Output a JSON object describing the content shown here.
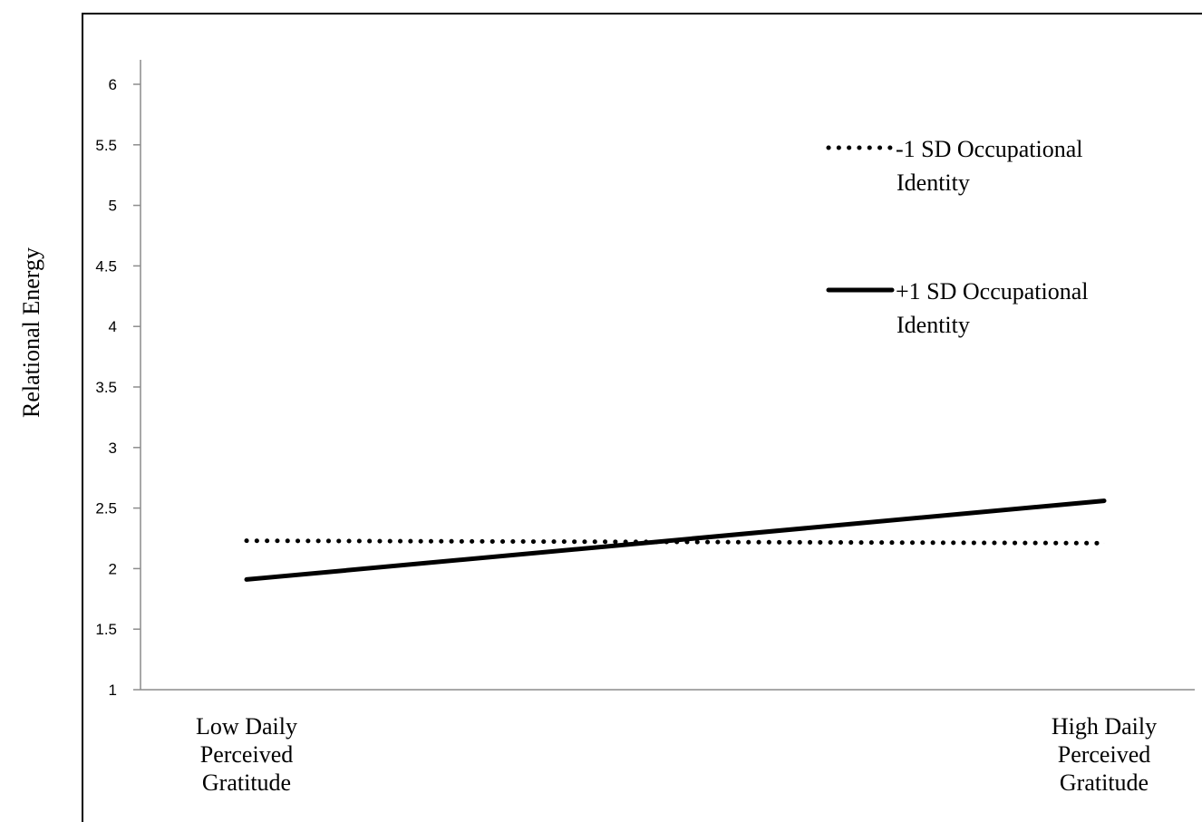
{
  "chart_data": {
    "type": "line",
    "title": "",
    "xlabel": "",
    "ylabel": "Relational Energy",
    "ylim": [
      1,
      6
    ],
    "yticks": [
      "1",
      "1.5",
      "2",
      "2.5",
      "3",
      "3.5",
      "4",
      "4.5",
      "5",
      "5.5",
      "6"
    ],
    "categories": [
      [
        "Low Daily",
        "Perceived",
        "Gratitude"
      ],
      [
        "High Daily",
        "Perceived",
        "Gratitude"
      ]
    ],
    "legend_position": "top-right",
    "series": [
      {
        "name_lines": [
          "-1 SD Occupational",
          "Identity"
        ],
        "style": "dotted",
        "color": "#000000",
        "values": [
          2.23,
          2.21
        ]
      },
      {
        "name_lines": [
          "+1 SD Occupational",
          "Identity"
        ],
        "style": "solid",
        "color": "#000000",
        "values": [
          1.91,
          2.56
        ]
      }
    ]
  }
}
